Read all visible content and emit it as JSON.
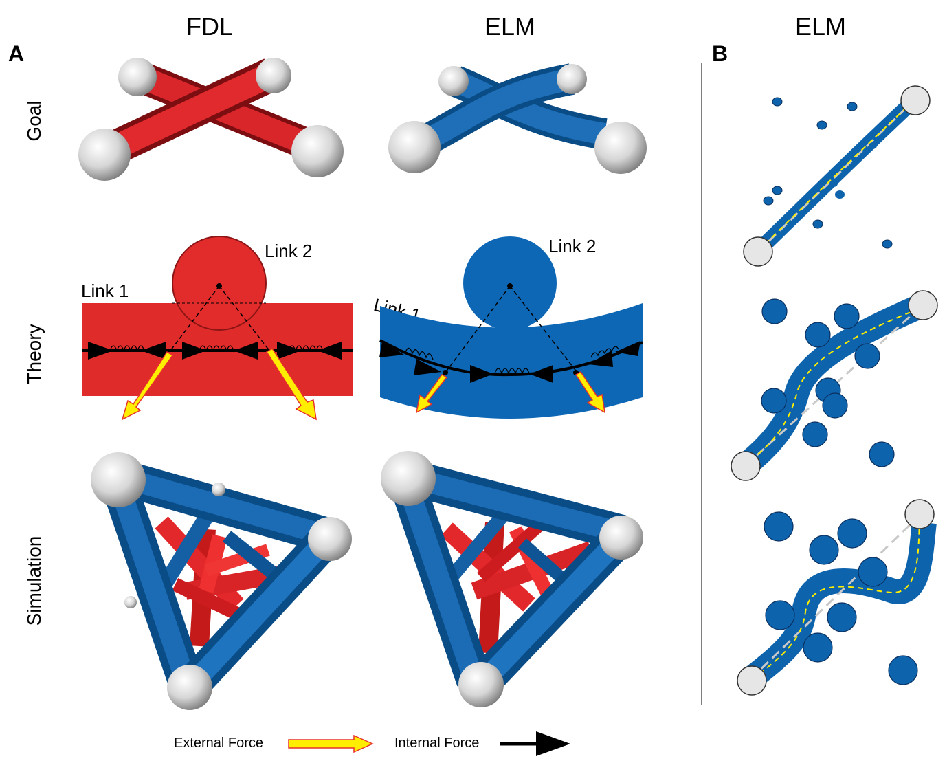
{
  "panels": {
    "a": {
      "letter": "A",
      "columns": [
        "FDL",
        "ELM"
      ]
    },
    "b": {
      "letter": "B",
      "column": "ELM"
    }
  },
  "rows": [
    "Goal",
    "Theory",
    "Simulation"
  ],
  "theory_labels": {
    "fdl": {
      "link1": "Link 1",
      "link2": "Link 2"
    },
    "elm": {
      "link1": "Link 1",
      "link2": "Link 2"
    }
  },
  "legend": {
    "external": "External Force",
    "internal": "Internal Force"
  },
  "colors": {
    "red": "#dd2a2a",
    "blue": "#0e63ad",
    "node_grey": "#d8d8d8",
    "arrow_yellow": "#ffee00",
    "arrow_outline": "#e8302a",
    "divider": "#555555"
  }
}
